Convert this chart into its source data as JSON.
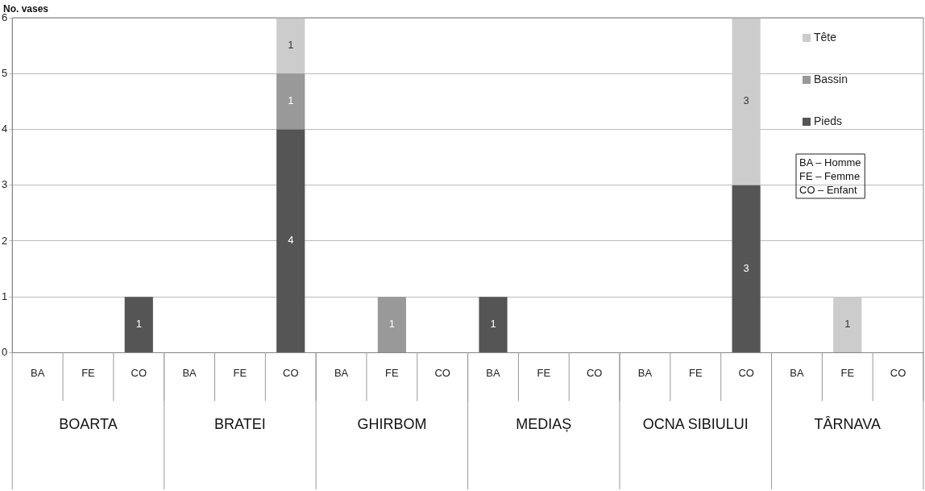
{
  "chart_data": {
    "type": "bar",
    "stacked": true,
    "ylabel": "No. vases",
    "categories": [
      "BA",
      "FE",
      "CO",
      "BA",
      "FE",
      "CO",
      "BA",
      "FE",
      "CO",
      "BA",
      "FE",
      "CO",
      "BA",
      "FE",
      "CO",
      "BA",
      "FE",
      "CO"
    ],
    "series": [
      {
        "name": "Pieds",
        "color": "#555555",
        "values": [
          null,
          null,
          1,
          null,
          null,
          4,
          null,
          null,
          null,
          1,
          null,
          null,
          null,
          null,
          3,
          null,
          null,
          null
        ]
      },
      {
        "name": "Bassin",
        "color": "#999999",
        "values": [
          null,
          null,
          null,
          null,
          null,
          1,
          null,
          1,
          null,
          null,
          null,
          null,
          null,
          null,
          null,
          null,
          null,
          null
        ]
      },
      {
        "name": "Tête",
        "color": "#cccccc",
        "values": [
          null,
          null,
          null,
          null,
          null,
          1,
          null,
          null,
          null,
          null,
          null,
          null,
          null,
          null,
          3,
          null,
          1,
          null
        ]
      }
    ],
    "ylim": [
      0,
      6
    ],
    "yticks": [
      0,
      1,
      2,
      3,
      4,
      5,
      6
    ],
    "grid": "y",
    "legend": "top right",
    "data_labels": true,
    "annotations": [
      "BOARTA",
      "BRATEI",
      "GHIRBOM",
      "MEDIAȘ",
      "OCNA SIBIULUI",
      "TÂRNAVA",
      "BA – Homme\nFE – Femme\nCO – Enfant"
    ]
  }
}
